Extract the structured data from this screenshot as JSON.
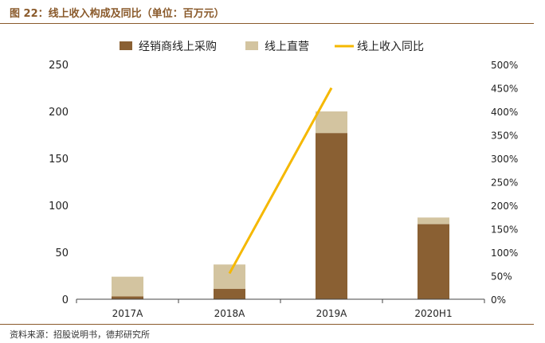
{
  "figure": {
    "title": "图 22：线上收入构成及同比（单位：百万元）",
    "source": "资料来源：招股说明书，德邦研究所"
  },
  "colors": {
    "accent": "#8a5a2b",
    "series_distributor": "#8a6033",
    "series_direct": "#d3c4a0",
    "series_yoy": "#f5b800"
  },
  "chart_data": {
    "type": "bar",
    "stacked": true,
    "categories": [
      "2017A",
      "2018A",
      "2019A",
      "2020H1"
    ],
    "series": [
      {
        "name": "经销商线上采购",
        "values": [
          3,
          11,
          177,
          80
        ],
        "axis": "left",
        "kind": "bar"
      },
      {
        "name": "线上直营",
        "values": [
          21,
          26,
          23,
          7
        ],
        "axis": "left",
        "kind": "bar"
      },
      {
        "name": "线上收入同比",
        "values": [
          null,
          0.55,
          4.5,
          null
        ],
        "axis": "right",
        "kind": "line"
      }
    ],
    "ylim_left": [
      0,
      250
    ],
    "yticks_left": [
      "0",
      "50",
      "100",
      "150",
      "200",
      "250"
    ],
    "ylim_right": [
      0,
      5
    ],
    "yticks_right": [
      "0%",
      "50%",
      "100%",
      "150%",
      "200%",
      "250%",
      "300%",
      "350%",
      "400%",
      "450%",
      "500%"
    ],
    "legend_position": "top-center",
    "grid": false
  }
}
